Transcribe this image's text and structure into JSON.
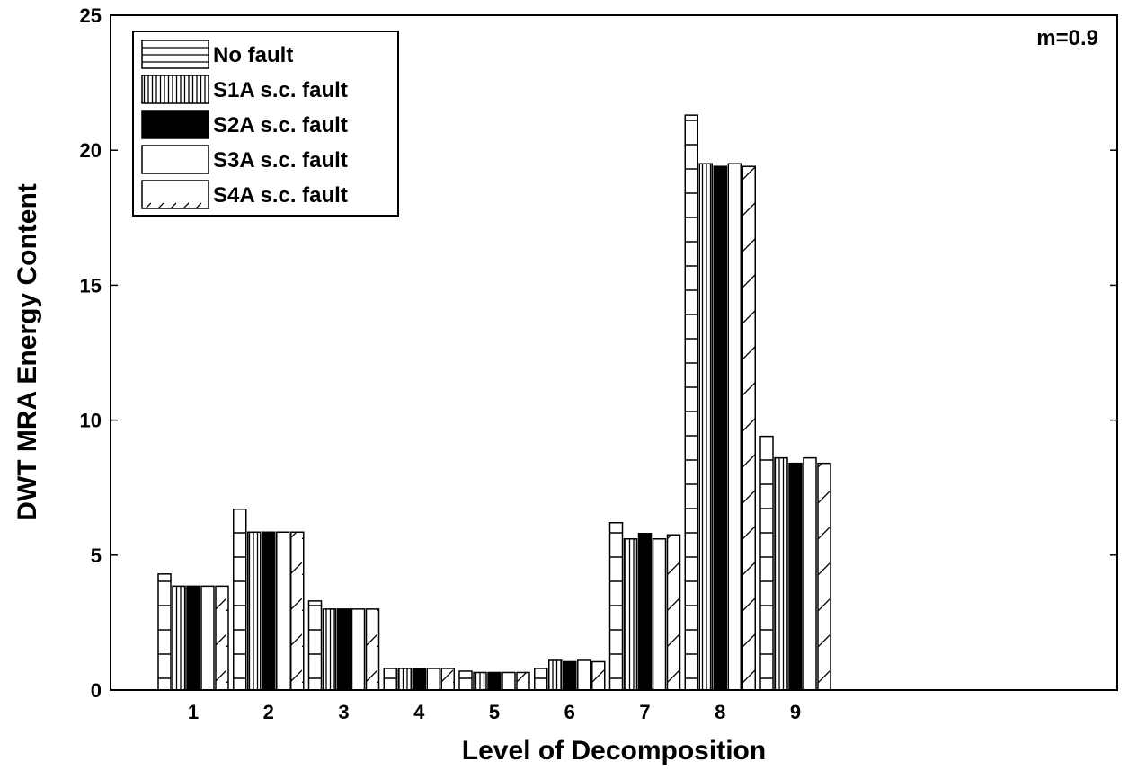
{
  "chart_data": {
    "type": "bar",
    "title": "",
    "annotation": "m=0.9",
    "xlabel": "Level of Decomposition",
    "ylabel": "DWT MRA Energy Content",
    "ylim": [
      0,
      25
    ],
    "yticks": [
      0,
      5,
      10,
      15,
      20,
      25
    ],
    "categories": [
      "1",
      "2",
      "3",
      "4",
      "5",
      "6",
      "7",
      "8",
      "9"
    ],
    "grid": false,
    "legend_position": "top-left",
    "series": [
      {
        "name": "No fault",
        "pattern": "horizontal-lines",
        "values": [
          4.3,
          6.7,
          3.3,
          0.8,
          0.7,
          0.8,
          6.2,
          21.3,
          9.4
        ]
      },
      {
        "name": "S1A s.c. fault",
        "pattern": "vertical-lines",
        "values": [
          3.85,
          5.85,
          3.0,
          0.8,
          0.65,
          1.1,
          5.6,
          19.5,
          8.6
        ]
      },
      {
        "name": "S2A s.c. fault",
        "pattern": "solid-black",
        "values": [
          3.85,
          5.85,
          3.0,
          0.8,
          0.65,
          1.05,
          5.8,
          19.4,
          8.4
        ]
      },
      {
        "name": "S3A s.c. fault",
        "pattern": "empty",
        "values": [
          3.85,
          5.85,
          3.0,
          0.8,
          0.65,
          1.1,
          5.6,
          19.5,
          8.6
        ]
      },
      {
        "name": "S4A s.c. fault",
        "pattern": "diagonal-lines",
        "values": [
          3.85,
          5.85,
          3.0,
          0.8,
          0.65,
          1.05,
          5.75,
          19.4,
          8.4
        ]
      }
    ]
  }
}
